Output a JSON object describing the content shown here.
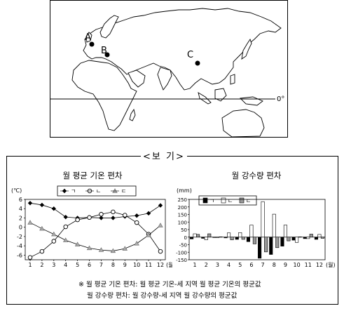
{
  "map": {
    "labels": [
      {
        "name": "A",
        "text": "A"
      },
      {
        "name": "B",
        "text": "B"
      },
      {
        "name": "C",
        "text": "C"
      }
    ],
    "equator_label": "0°"
  },
  "box": {
    "title": "<보 기>"
  },
  "notes": {
    "line1": "※ 월 평균 기온 편차: 월 평균 기온-세 지역 월 평균 기온의 평균값",
    "line2": "월 강수량 편차: 월 강수량-세 지역 월 강수량의 평균값"
  },
  "chart_data": [
    {
      "type": "line",
      "title": "월 평균 기온 편차",
      "unit": "(℃)",
      "xlabel_suffix": "(월)",
      "x": [
        1,
        2,
        3,
        4,
        5,
        6,
        7,
        8,
        9,
        10,
        11,
        12
      ],
      "yticks": [
        6,
        4,
        2,
        0,
        -2,
        -4,
        -6
      ],
      "ylim": [
        -7,
        6
      ],
      "series": [
        {
          "name": "ㄱ",
          "marker": "diamond",
          "values": [
            5.2,
            4.8,
            4.0,
            2.2,
            2.0,
            2.1,
            2.0,
            2.0,
            2.3,
            2.5,
            3.0,
            4.7
          ]
        },
        {
          "name": "ㄴ",
          "marker": "circle",
          "values": [
            -6.5,
            -5.2,
            -3.0,
            0.1,
            1.6,
            2.1,
            2.8,
            3.3,
            2.6,
            1.0,
            -1.5,
            -5.2
          ]
        },
        {
          "name": "ㄷ",
          "marker": "triangle",
          "values": [
            1.0,
            -0.3,
            -1.5,
            -2.8,
            -3.7,
            -4.5,
            -4.9,
            -5.1,
            -4.6,
            -3.5,
            -1.7,
            0.4
          ]
        }
      ],
      "grid": false,
      "legend": "top"
    },
    {
      "type": "bar",
      "title": "월 강수량 편차",
      "unit": "(mm)",
      "xlabel_suffix": "(월)",
      "categories": [
        1,
        2,
        3,
        4,
        5,
        6,
        7,
        8,
        9,
        10,
        11,
        12
      ],
      "yticks": [
        250,
        200,
        150,
        100,
        50,
        0,
        -50,
        -100,
        -150
      ],
      "ylim": [
        -150,
        250
      ],
      "series": [
        {
          "name": "ㄱ",
          "fill": "black",
          "values": [
            -12,
            -8,
            -3,
            -5,
            -15,
            -30,
            -140,
            -115,
            -60,
            -20,
            -10,
            -15
          ]
        },
        {
          "name": "ㄴ",
          "fill": "white",
          "values": [
            22,
            -18,
            -3,
            28,
            30,
            80,
            235,
            152,
            80,
            -35,
            -10,
            18
          ]
        },
        {
          "name": "ㄷ",
          "fill": "gray",
          "values": [
            18,
            22,
            2,
            -18,
            -15,
            -45,
            -98,
            -70,
            -25,
            2,
            20,
            -8
          ]
        }
      ],
      "grid": false,
      "legend": "top"
    }
  ]
}
